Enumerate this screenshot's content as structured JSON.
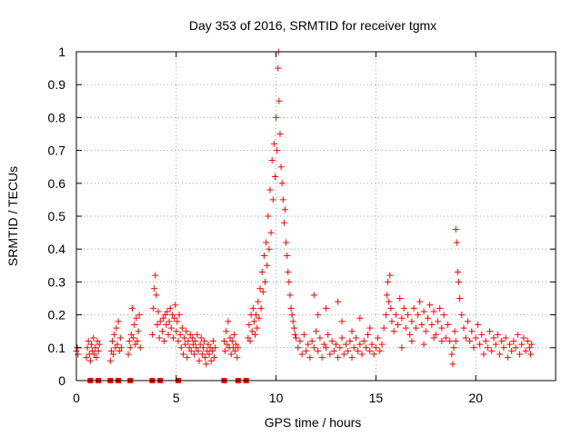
{
  "chart_data": {
    "type": "scatter",
    "title": "Day 353 of 2016, SRMTID for receiver tgmx",
    "xlabel": "GPS time / hours",
    "ylabel": "SRMTID / TECUs",
    "xlim": [
      0,
      24
    ],
    "ylim": [
      0,
      1
    ],
    "x_ticks": [
      0,
      5,
      10,
      15,
      20
    ],
    "x_tick_labels": [
      "0",
      "5",
      "10",
      "15",
      "20"
    ],
    "y_ticks": [
      0,
      0.1,
      0.2,
      0.3,
      0.4,
      0.5,
      0.6,
      0.7,
      0.8,
      0.9,
      1
    ],
    "y_tick_labels": [
      "0",
      "0.1",
      "0.2",
      "0.3",
      "0.4",
      "0.5",
      "0.6",
      "0.7",
      "0.8",
      "0.9",
      "1"
    ],
    "grid": true,
    "marker": "+",
    "series_color": "#ff0000",
    "zero_markers_x": [
      0.7,
      1.1,
      1.7,
      2.1,
      2.7,
      3.8,
      4.2,
      5.1,
      7.4,
      8.1,
      8.5
    ],
    "series": [
      {
        "name": "SRMTID",
        "points": [
          [
            0.0,
            0.09
          ],
          [
            0.05,
            0.1
          ],
          [
            0.08,
            0.08
          ],
          [
            0.5,
            0.07
          ],
          [
            0.55,
            0.1
          ],
          [
            0.6,
            0.12
          ],
          [
            0.65,
            0.08
          ],
          [
            0.7,
            0.06
          ],
          [
            0.75,
            0.11
          ],
          [
            0.8,
            0.09
          ],
          [
            0.85,
            0.13
          ],
          [
            0.9,
            0.08
          ],
          [
            0.95,
            0.1
          ],
          [
            1.0,
            0.07
          ],
          [
            1.05,
            0.12
          ],
          [
            1.1,
            0.09
          ],
          [
            1.15,
            0.11
          ],
          [
            1.7,
            0.06
          ],
          [
            1.75,
            0.09
          ],
          [
            1.8,
            0.12
          ],
          [
            1.85,
            0.08
          ],
          [
            1.9,
            0.14
          ],
          [
            1.95,
            0.1
          ],
          [
            2.0,
            0.16
          ],
          [
            2.05,
            0.11
          ],
          [
            2.1,
            0.18
          ],
          [
            2.15,
            0.09
          ],
          [
            2.2,
            0.13
          ],
          [
            2.25,
            0.1
          ],
          [
            2.6,
            0.08
          ],
          [
            2.65,
            0.12
          ],
          [
            2.7,
            0.1
          ],
          [
            2.75,
            0.14
          ],
          [
            2.8,
            0.22
          ],
          [
            2.85,
            0.13
          ],
          [
            2.9,
            0.17
          ],
          [
            2.95,
            0.11
          ],
          [
            3.0,
            0.19
          ],
          [
            3.05,
            0.12
          ],
          [
            3.1,
            0.15
          ],
          [
            3.15,
            0.2
          ],
          [
            3.2,
            0.1
          ],
          [
            3.8,
            0.14
          ],
          [
            3.85,
            0.22
          ],
          [
            3.9,
            0.28
          ],
          [
            3.95,
            0.32
          ],
          [
            4.0,
            0.26
          ],
          [
            4.05,
            0.17
          ],
          [
            4.1,
            0.21
          ],
          [
            4.15,
            0.13
          ],
          [
            4.2,
            0.18
          ],
          [
            4.3,
            0.15
          ],
          [
            4.35,
            0.19
          ],
          [
            4.4,
            0.12
          ],
          [
            4.45,
            0.2
          ],
          [
            4.5,
            0.17
          ],
          [
            4.55,
            0.21
          ],
          [
            4.6,
            0.14
          ],
          [
            4.65,
            0.18
          ],
          [
            4.7,
            0.22
          ],
          [
            4.75,
            0.16
          ],
          [
            4.8,
            0.2
          ],
          [
            4.85,
            0.13
          ],
          [
            4.9,
            0.19
          ],
          [
            4.95,
            0.23
          ],
          [
            5.0,
            0.15
          ],
          [
            5.05,
            0.18
          ],
          [
            5.1,
            0.12
          ],
          [
            5.15,
            0.2
          ],
          [
            5.2,
            0.14
          ],
          [
            5.25,
            0.1
          ],
          [
            5.3,
            0.16
          ],
          [
            5.35,
            0.08
          ],
          [
            5.4,
            0.13
          ],
          [
            5.45,
            0.11
          ],
          [
            5.5,
            0.15
          ],
          [
            5.55,
            0.07
          ],
          [
            5.6,
            0.12
          ],
          [
            5.65,
            0.1
          ],
          [
            5.7,
            0.14
          ],
          [
            5.75,
            0.09
          ],
          [
            5.8,
            0.13
          ],
          [
            5.85,
            0.11
          ],
          [
            5.9,
            0.08
          ],
          [
            5.95,
            0.12
          ],
          [
            6.0,
            0.1
          ],
          [
            6.05,
            0.14
          ],
          [
            6.1,
            0.09
          ],
          [
            6.15,
            0.06
          ],
          [
            6.2,
            0.11
          ],
          [
            6.25,
            0.13
          ],
          [
            6.3,
            0.08
          ],
          [
            6.35,
            0.1
          ],
          [
            6.4,
            0.12
          ],
          [
            6.45,
            0.07
          ],
          [
            6.5,
            0.05
          ],
          [
            6.55,
            0.09
          ],
          [
            6.6,
            0.11
          ],
          [
            6.65,
            0.08
          ],
          [
            6.7,
            0.1
          ],
          [
            6.75,
            0.06
          ],
          [
            6.8,
            0.09
          ],
          [
            6.85,
            0.12
          ],
          [
            6.9,
            0.07
          ],
          [
            6.95,
            0.1
          ],
          [
            7.4,
            0.12
          ],
          [
            7.45,
            0.09
          ],
          [
            7.5,
            0.15
          ],
          [
            7.55,
            0.11
          ],
          [
            7.6,
            0.18
          ],
          [
            7.65,
            0.1
          ],
          [
            7.7,
            0.13
          ],
          [
            7.75,
            0.08
          ],
          [
            7.8,
            0.12
          ],
          [
            7.85,
            0.1
          ],
          [
            7.9,
            0.14
          ],
          [
            7.95,
            0.09
          ],
          [
            8.0,
            0.11
          ],
          [
            8.05,
            0.07
          ],
          [
            8.1,
            0.1
          ],
          [
            8.6,
            0.13
          ],
          [
            8.65,
            0.17
          ],
          [
            8.7,
            0.12
          ],
          [
            8.75,
            0.2
          ],
          [
            8.8,
            0.15
          ],
          [
            8.85,
            0.22
          ],
          [
            8.9,
            0.18
          ],
          [
            8.95,
            0.14
          ],
          [
            9.0,
            0.2
          ],
          [
            9.05,
            0.16
          ],
          [
            9.1,
            0.24
          ],
          [
            9.15,
            0.19
          ],
          [
            9.2,
            0.28
          ],
          [
            9.25,
            0.22
          ],
          [
            9.3,
            0.33
          ],
          [
            9.35,
            0.27
          ],
          [
            9.4,
            0.38
          ],
          [
            9.45,
            0.3
          ],
          [
            9.5,
            0.42
          ],
          [
            9.55,
            0.35
          ],
          [
            9.6,
            0.5
          ],
          [
            9.65,
            0.4
          ],
          [
            9.7,
            0.58
          ],
          [
            9.75,
            0.45
          ],
          [
            9.8,
            0.67
          ],
          [
            9.85,
            0.55
          ],
          [
            9.9,
            0.72
          ],
          [
            9.95,
            0.62
          ],
          [
            10.0,
            0.8
          ],
          [
            10.05,
            0.7
          ],
          [
            10.1,
            0.95
          ],
          [
            10.12,
            1.0
          ],
          [
            10.15,
            0.85
          ],
          [
            10.2,
            0.75
          ],
          [
            10.25,
            0.65
          ],
          [
            10.3,
            0.6
          ],
          [
            10.35,
            0.55
          ],
          [
            10.4,
            0.48
          ],
          [
            10.45,
            0.52
          ],
          [
            10.5,
            0.42
          ],
          [
            10.55,
            0.38
          ],
          [
            10.6,
            0.33
          ],
          [
            10.65,
            0.3
          ],
          [
            10.7,
            0.26
          ],
          [
            10.75,
            0.22
          ],
          [
            10.8,
            0.2
          ],
          [
            10.85,
            0.18
          ],
          [
            10.9,
            0.16
          ],
          [
            10.95,
            0.14
          ],
          [
            11.0,
            0.13
          ],
          [
            11.1,
            0.1
          ],
          [
            11.2,
            0.12
          ],
          [
            11.3,
            0.08
          ],
          [
            11.4,
            0.14
          ],
          [
            11.5,
            0.09
          ],
          [
            11.6,
            0.11
          ],
          [
            11.7,
            0.07
          ],
          [
            11.8,
            0.12
          ],
          [
            11.9,
            0.1
          ],
          [
            12.0,
            0.15
          ],
          [
            12.1,
            0.09
          ],
          [
            12.2,
            0.13
          ],
          [
            12.3,
            0.07
          ],
          [
            12.4,
            0.11
          ],
          [
            12.5,
            0.1
          ],
          [
            12.6,
            0.14
          ],
          [
            12.7,
            0.08
          ],
          [
            12.8,
            0.12
          ],
          [
            12.9,
            0.09
          ],
          [
            13.0,
            0.11
          ],
          [
            13.1,
            0.07
          ],
          [
            13.2,
            0.1
          ],
          [
            13.3,
            0.13
          ],
          [
            13.4,
            0.08
          ],
          [
            13.5,
            0.11
          ],
          [
            13.6,
            0.09
          ],
          [
            13.7,
            0.12
          ],
          [
            13.8,
            0.07
          ],
          [
            13.9,
            0.1
          ],
          [
            14.0,
            0.13
          ],
          [
            14.1,
            0.09
          ],
          [
            14.2,
            0.11
          ],
          [
            14.3,
            0.08
          ],
          [
            14.4,
            0.12
          ],
          [
            14.5,
            0.1
          ],
          [
            14.6,
            0.14
          ],
          [
            14.7,
            0.09
          ],
          [
            14.8,
            0.11
          ],
          [
            14.9,
            0.08
          ],
          [
            15.0,
            0.1
          ],
          [
            15.1,
            0.13
          ],
          [
            15.2,
            0.09
          ],
          [
            15.3,
            0.11
          ],
          [
            11.9,
            0.26
          ],
          [
            12.1,
            0.2
          ],
          [
            12.5,
            0.22
          ],
          [
            13.1,
            0.24
          ],
          [
            13.3,
            0.18
          ],
          [
            13.8,
            0.15
          ],
          [
            14.2,
            0.19
          ],
          [
            14.7,
            0.16
          ],
          [
            15.4,
            0.16
          ],
          [
            15.5,
            0.2
          ],
          [
            15.55,
            0.26
          ],
          [
            15.6,
            0.3
          ],
          [
            15.65,
            0.24
          ],
          [
            15.7,
            0.32
          ],
          [
            15.75,
            0.22
          ],
          [
            15.8,
            0.18
          ],
          [
            15.9,
            0.15
          ],
          [
            16.0,
            0.2
          ],
          [
            16.1,
            0.17
          ],
          [
            16.2,
            0.25
          ],
          [
            16.3,
            0.19
          ],
          [
            16.4,
            0.22
          ],
          [
            16.5,
            0.16
          ],
          [
            16.6,
            0.2
          ],
          [
            16.7,
            0.14
          ],
          [
            16.8,
            0.18
          ],
          [
            16.9,
            0.22
          ],
          [
            17.0,
            0.16
          ],
          [
            17.1,
            0.2
          ],
          [
            17.2,
            0.24
          ],
          [
            17.3,
            0.17
          ],
          [
            17.4,
            0.21
          ],
          [
            17.5,
            0.15
          ],
          [
            17.6,
            0.19
          ],
          [
            17.7,
            0.23
          ],
          [
            17.8,
            0.17
          ],
          [
            17.9,
            0.21
          ],
          [
            18.0,
            0.14
          ],
          [
            18.1,
            0.18
          ],
          [
            18.2,
            0.22
          ],
          [
            18.3,
            0.16
          ],
          [
            18.4,
            0.2
          ],
          [
            18.5,
            0.13
          ],
          [
            18.6,
            0.17
          ],
          [
            18.7,
            0.12
          ],
          [
            18.8,
            0.08
          ],
          [
            18.85,
            0.05
          ],
          [
            18.9,
            0.1
          ],
          [
            18.95,
            0.15
          ],
          [
            19.0,
            0.12
          ],
          [
            16.3,
            0.1
          ],
          [
            16.8,
            0.12
          ],
          [
            17.4,
            0.11
          ],
          [
            17.9,
            0.13
          ],
          [
            18.3,
            0.12
          ],
          [
            19.0,
            0.46
          ],
          [
            19.05,
            0.42
          ],
          [
            19.1,
            0.33
          ],
          [
            19.15,
            0.3
          ],
          [
            19.2,
            0.25
          ],
          [
            19.3,
            0.2
          ],
          [
            19.4,
            0.16
          ],
          [
            19.5,
            0.13
          ],
          [
            19.6,
            0.18
          ],
          [
            19.7,
            0.12
          ],
          [
            19.8,
            0.15
          ],
          [
            19.9,
            0.1
          ],
          [
            20.0,
            0.13
          ],
          [
            20.1,
            0.17
          ],
          [
            20.2,
            0.11
          ],
          [
            20.3,
            0.14
          ],
          [
            20.4,
            0.08
          ],
          [
            20.5,
            0.12
          ],
          [
            20.6,
            0.1
          ],
          [
            20.7,
            0.15
          ],
          [
            20.8,
            0.09
          ],
          [
            20.9,
            0.13
          ],
          [
            21.0,
            0.11
          ],
          [
            21.1,
            0.14
          ],
          [
            21.2,
            0.08
          ],
          [
            21.3,
            0.12
          ],
          [
            21.4,
            0.1
          ],
          [
            21.5,
            0.13
          ],
          [
            21.6,
            0.07
          ],
          [
            21.7,
            0.11
          ],
          [
            21.8,
            0.09
          ],
          [
            21.9,
            0.12
          ],
          [
            22.0,
            0.1
          ],
          [
            22.1,
            0.14
          ],
          [
            22.2,
            0.08
          ],
          [
            22.3,
            0.11
          ],
          [
            22.4,
            0.13
          ],
          [
            22.5,
            0.09
          ],
          [
            22.6,
            0.12
          ],
          [
            22.7,
            0.1
          ],
          [
            22.75,
            0.08
          ],
          [
            22.8,
            0.11
          ]
        ]
      }
    ]
  }
}
